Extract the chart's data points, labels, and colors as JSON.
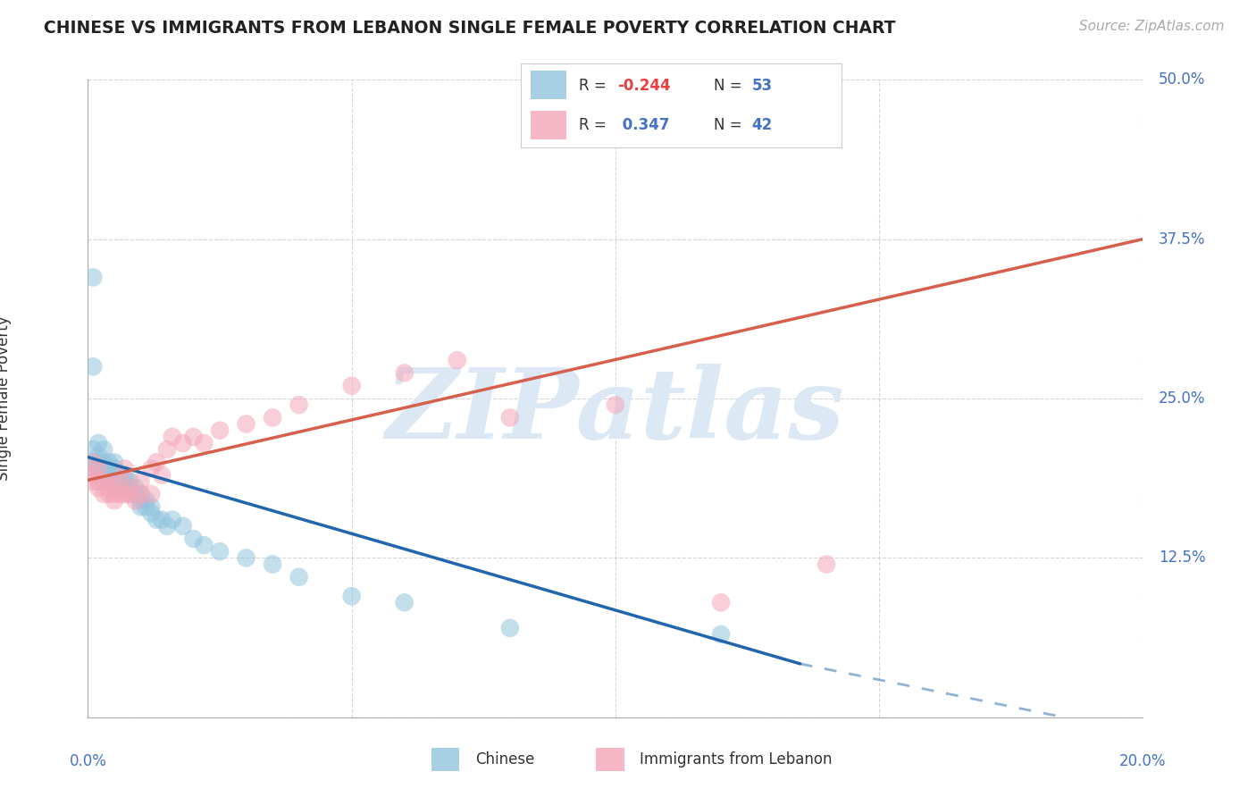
{
  "title": "CHINESE VS IMMIGRANTS FROM LEBANON SINGLE FEMALE POVERTY CORRELATION CHART",
  "source": "Source: ZipAtlas.com",
  "ylabel_label": "Single Female Poverty",
  "x_min": 0.0,
  "x_max": 0.2,
  "y_min": 0.0,
  "y_max": 0.5,
  "y_ticks": [
    0.0,
    0.125,
    0.25,
    0.375,
    0.5
  ],
  "y_tick_labels_right": [
    "",
    "12.5%",
    "25.0%",
    "37.5%",
    "50.0%"
  ],
  "legend_R1": "R = -0.244",
  "legend_N1": "N = 53",
  "legend_R2": "R =  0.347",
  "legend_N2": "N = 42",
  "color_chinese": "#92c5de",
  "color_lebanon": "#f4a7b9",
  "color_chinese_line": "#2166ac",
  "color_lebanon_line": "#d6604d",
  "watermark_text": "ZIPatlas",
  "chinese_x": [
    0.001,
    0.001,
    0.001,
    0.002,
    0.002,
    0.002,
    0.002,
    0.003,
    0.003,
    0.003,
    0.003,
    0.004,
    0.004,
    0.004,
    0.005,
    0.005,
    0.005,
    0.005,
    0.006,
    0.006,
    0.006,
    0.007,
    0.007,
    0.007,
    0.008,
    0.008,
    0.008,
    0.009,
    0.009,
    0.01,
    0.01,
    0.01,
    0.011,
    0.011,
    0.012,
    0.012,
    0.013,
    0.014,
    0.015,
    0.016,
    0.018,
    0.02,
    0.022,
    0.025,
    0.03,
    0.035,
    0.04,
    0.05,
    0.06,
    0.08,
    0.001,
    0.001,
    0.12
  ],
  "chinese_y": [
    0.195,
    0.2,
    0.21,
    0.195,
    0.2,
    0.205,
    0.215,
    0.195,
    0.2,
    0.21,
    0.185,
    0.195,
    0.2,
    0.185,
    0.19,
    0.195,
    0.185,
    0.2,
    0.185,
    0.19,
    0.18,
    0.185,
    0.19,
    0.18,
    0.18,
    0.185,
    0.175,
    0.175,
    0.18,
    0.175,
    0.17,
    0.165,
    0.165,
    0.17,
    0.165,
    0.16,
    0.155,
    0.155,
    0.15,
    0.155,
    0.15,
    0.14,
    0.135,
    0.13,
    0.125,
    0.12,
    0.11,
    0.095,
    0.09,
    0.07,
    0.345,
    0.275,
    0.065
  ],
  "lebanon_x": [
    0.001,
    0.001,
    0.001,
    0.002,
    0.002,
    0.002,
    0.003,
    0.003,
    0.004,
    0.004,
    0.005,
    0.005,
    0.005,
    0.006,
    0.006,
    0.007,
    0.007,
    0.008,
    0.008,
    0.009,
    0.01,
    0.01,
    0.012,
    0.012,
    0.013,
    0.014,
    0.015,
    0.016,
    0.018,
    0.02,
    0.022,
    0.025,
    0.03,
    0.035,
    0.04,
    0.05,
    0.06,
    0.07,
    0.08,
    0.1,
    0.12,
    0.14
  ],
  "lebanon_y": [
    0.2,
    0.19,
    0.185,
    0.195,
    0.185,
    0.18,
    0.185,
    0.175,
    0.18,
    0.175,
    0.175,
    0.185,
    0.17,
    0.175,
    0.185,
    0.175,
    0.195,
    0.175,
    0.18,
    0.17,
    0.175,
    0.185,
    0.175,
    0.195,
    0.2,
    0.19,
    0.21,
    0.22,
    0.215,
    0.22,
    0.215,
    0.225,
    0.23,
    0.235,
    0.245,
    0.26,
    0.27,
    0.28,
    0.235,
    0.245,
    0.09,
    0.12
  ],
  "ch_line_x0": 0.0,
  "ch_line_y0": 0.204,
  "ch_line_x1": 0.135,
  "ch_line_y1": 0.042,
  "ch_line_dash_x1": 0.185,
  "ch_line_dash_y1": 0.0,
  "lb_line_x0": 0.0,
  "lb_line_y0": 0.186,
  "lb_line_x1": 0.2,
  "lb_line_y1": 0.375
}
